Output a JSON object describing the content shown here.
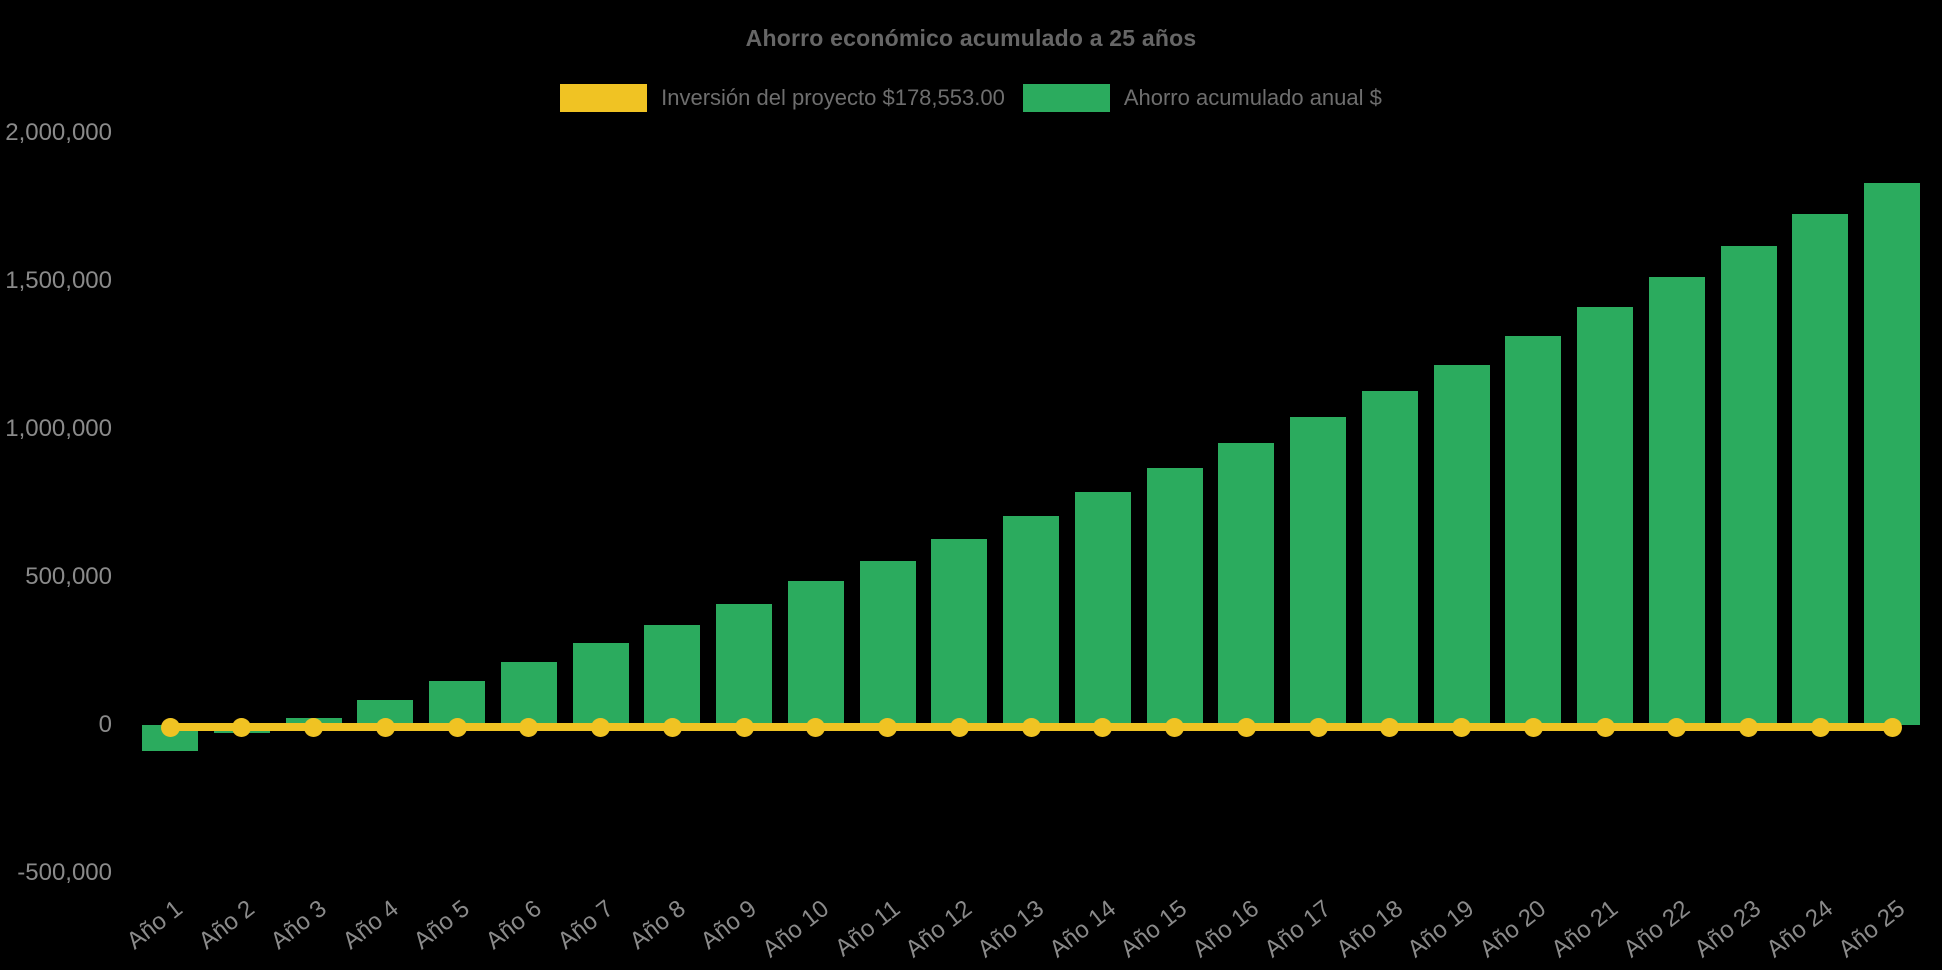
{
  "title": "Ahorro económico acumulado a 25 años",
  "background_color": "#000000",
  "legend": {
    "items": [
      {
        "label": "Inversión del proyecto $178,553.00",
        "color": "#f0c323"
      },
      {
        "label": "Ahorro acumulado anual $",
        "color": "#2bab5e"
      }
    ]
  },
  "chart_data": {
    "type": "bar",
    "title": "Ahorro económico acumulado a 25 años",
    "xlabel": "",
    "ylabel": "",
    "grid": false,
    "legend_position": "top-center",
    "categories": [
      "Año 1",
      "Año 2",
      "Año 3",
      "Año 4",
      "Año 5",
      "Año 6",
      "Año 7",
      "Año 8",
      "Año 9",
      "Año 10",
      "Año 11",
      "Año 12",
      "Año 13",
      "Año 14",
      "Año 15",
      "Año 16",
      "Año 17",
      "Año 18",
      "Año 19",
      "Año 20",
      "Año 21",
      "Año 22",
      "Año 23",
      "Año 24",
      "Año 25"
    ],
    "series": [
      {
        "name": "Ahorro acumulado anual $",
        "type": "bar",
        "color": "#2bab5e",
        "values": [
          -88000,
          -27000,
          25000,
          85000,
          148000,
          213000,
          277000,
          338000,
          409000,
          486000,
          554000,
          628000,
          706000,
          787000,
          868000,
          953000,
          1040000,
          1128000,
          1216000,
          1314000,
          1412000,
          1513000,
          1618000,
          1726000,
          1831000
        ]
      },
      {
        "name": "Inversión del proyecto $178,553.00",
        "type": "line",
        "color": "#f0c323",
        "marker": "circle",
        "constant_value": 0
      }
    ],
    "y_axis": {
      "range": [
        -500000,
        2000000
      ],
      "ticks": [
        {
          "value": 2000000,
          "label": "2,000,000"
        },
        {
          "value": 1500000,
          "label": "1,500,000"
        },
        {
          "value": 1000000,
          "label": "1,000,000"
        },
        {
          "value": 500000,
          "label": "500,000"
        },
        {
          "value": 0,
          "label": "0"
        },
        {
          "value": -500000,
          "label": "-500,000"
        }
      ]
    }
  }
}
